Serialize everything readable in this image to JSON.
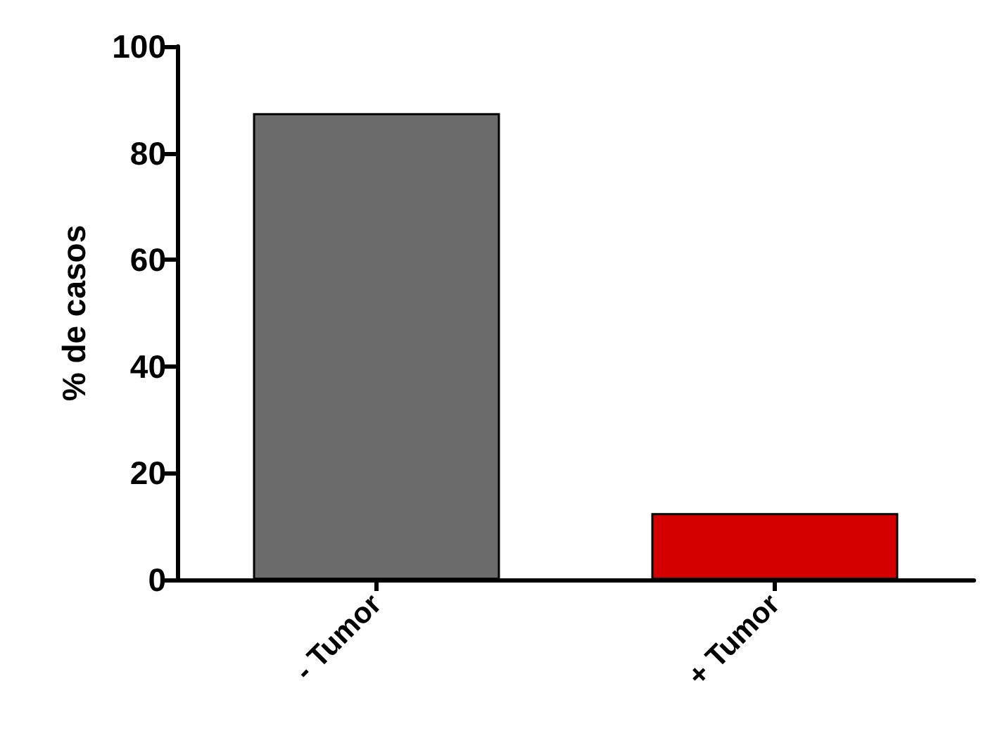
{
  "chart_data": {
    "type": "bar",
    "ylabel": "% de casos",
    "categories": [
      "- Tumor",
      "+ Tumor"
    ],
    "values": [
      87.5,
      12.5
    ],
    "colors": [
      "#6b6b6b",
      "#d40000"
    ],
    "ylim": [
      0,
      100
    ],
    "yticks": [
      0,
      20,
      40,
      60,
      80,
      100
    ],
    "grid": false
  }
}
